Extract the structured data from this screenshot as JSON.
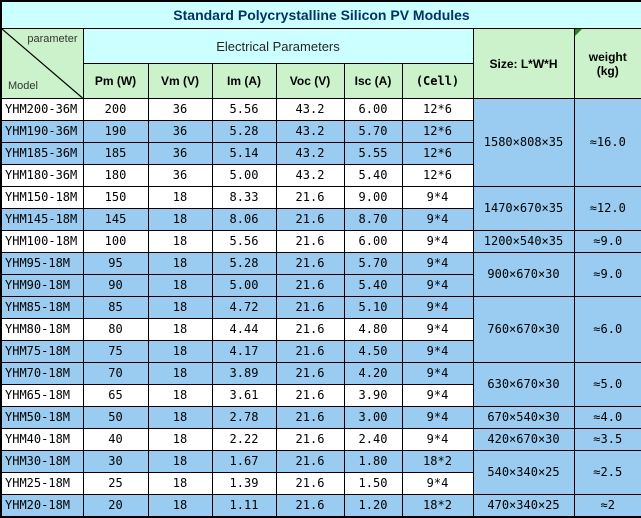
{
  "title": "Standard Polycrystalline Silicon PV Modules",
  "colors": {
    "title_text": "#003366",
    "cyan_band": "#CCFFFF",
    "header_green": "#CBF2CB",
    "row_blue": "#99CCF0",
    "row_white": "#FFFFFF",
    "border": "#000000",
    "corner_flag_green": "#1D8A1D"
  },
  "header": {
    "corner_top": "parameter",
    "corner_bottom": "Model",
    "group": "Electrical Parameters",
    "columns": [
      "Pm (W)",
      "Vm (V)",
      "Im (A)",
      "Voc (V)",
      "Isc (A)",
      "(Cell)"
    ],
    "size_label": "Size: L*W*H",
    "weight_label_line1": "weight",
    "weight_label_line2": "(kg)"
  },
  "rows": [
    {
      "model": "YHM200-36M",
      "pm": "200",
      "vm": "36",
      "im": "5.56",
      "voc": "43.2",
      "isc": "6.00",
      "cell": "12*6",
      "shaded": false
    },
    {
      "model": "YHM190-36M",
      "pm": "190",
      "vm": "36",
      "im": "5.28",
      "voc": "43.2",
      "isc": "5.70",
      "cell": "12*6",
      "shaded": true
    },
    {
      "model": "YHM185-36M",
      "pm": "185",
      "vm": "36",
      "im": "5.14",
      "voc": "43.2",
      "isc": "5.55",
      "cell": "12*6",
      "shaded": true
    },
    {
      "model": "YHM180-36M",
      "pm": "180",
      "vm": "36",
      "im": "5.00",
      "voc": "43.2",
      "isc": "5.40",
      "cell": "12*6",
      "shaded": false
    },
    {
      "model": "YHM150-18M",
      "pm": "150",
      "vm": "18",
      "im": "8.33",
      "voc": "21.6",
      "isc": "9.00",
      "cell": "9*4",
      "shaded": false
    },
    {
      "model": "YHM145-18M",
      "pm": "145",
      "vm": "18",
      "im": "8.06",
      "voc": "21.6",
      "isc": "8.70",
      "cell": "9*4",
      "shaded": true
    },
    {
      "model": "YHM100-18M",
      "pm": "100",
      "vm": "18",
      "im": "5.56",
      "voc": "21.6",
      "isc": "6.00",
      "cell": "9*4",
      "shaded": false
    },
    {
      "model": "YHM95-18M",
      "pm": "95",
      "vm": "18",
      "im": "5.28",
      "voc": "21.6",
      "isc": "5.70",
      "cell": "9*4",
      "shaded": true
    },
    {
      "model": "YHM90-18M",
      "pm": "90",
      "vm": "18",
      "im": "5.00",
      "voc": "21.6",
      "isc": "5.40",
      "cell": "9*4",
      "shaded": true
    },
    {
      "model": "YHM85-18M",
      "pm": "85",
      "vm": "18",
      "im": "4.72",
      "voc": "21.6",
      "isc": "5.10",
      "cell": "9*4",
      "shaded": true
    },
    {
      "model": "YHM80-18M",
      "pm": "80",
      "vm": "18",
      "im": "4.44",
      "voc": "21.6",
      "isc": "4.80",
      "cell": "9*4",
      "shaded": false
    },
    {
      "model": "YHM75-18M",
      "pm": "75",
      "vm": "18",
      "im": "4.17",
      "voc": "21.6",
      "isc": "4.50",
      "cell": "9*4",
      "shaded": true
    },
    {
      "model": "YHM70-18M",
      "pm": "70",
      "vm": "18",
      "im": "3.89",
      "voc": "21.6",
      "isc": "4.20",
      "cell": "9*4",
      "shaded": true
    },
    {
      "model": "YHM65-18M",
      "pm": "65",
      "vm": "18",
      "im": "3.61",
      "voc": "21.6",
      "isc": "3.90",
      "cell": "9*4",
      "shaded": false
    },
    {
      "model": "YHM50-18M",
      "pm": "50",
      "vm": "18",
      "im": "2.78",
      "voc": "21.6",
      "isc": "3.00",
      "cell": "9*4",
      "shaded": true
    },
    {
      "model": "YHM40-18M",
      "pm": "40",
      "vm": "18",
      "im": "2.22",
      "voc": "21.6",
      "isc": "2.40",
      "cell": "9*4",
      "shaded": false
    },
    {
      "model": "YHM30-18M",
      "pm": "30",
      "vm": "18",
      "im": "1.67",
      "voc": "21.6",
      "isc": "1.80",
      "cell": "18*2",
      "shaded": true
    },
    {
      "model": "YHM25-18M",
      "pm": "25",
      "vm": "18",
      "im": "1.39",
      "voc": "21.6",
      "isc": "1.50",
      "cell": "9*4",
      "shaded": false
    },
    {
      "model": "YHM20-18M",
      "pm": "20",
      "vm": "18",
      "im": "1.11",
      "voc": "21.6",
      "isc": "1.20",
      "cell": "18*2",
      "shaded": true
    }
  ],
  "size_groups": [
    {
      "size": "1580×808×35",
      "weight": "≈16.0",
      "rows": 4
    },
    {
      "size": "1470×670×35",
      "weight": "≈12.0",
      "rows": 2
    },
    {
      "size": "1200×540×35",
      "weight": "≈9.0",
      "rows": 1
    },
    {
      "size": "900×670×30",
      "weight": "≈9.0",
      "rows": 2
    },
    {
      "size": "760×670×30",
      "weight": "≈6.0",
      "rows": 3
    },
    {
      "size": "630×670×30",
      "weight": "≈5.0",
      "rows": 2
    },
    {
      "size": "670×540×30",
      "weight": "≈4.0",
      "rows": 1
    },
    {
      "size": "420×670×30",
      "weight": "≈3.5",
      "rows": 1
    },
    {
      "size": "540×340×25",
      "weight": "≈2.5",
      "rows": 2
    },
    {
      "size": "470×340×25",
      "weight": "≈2",
      "rows": 1
    }
  ]
}
